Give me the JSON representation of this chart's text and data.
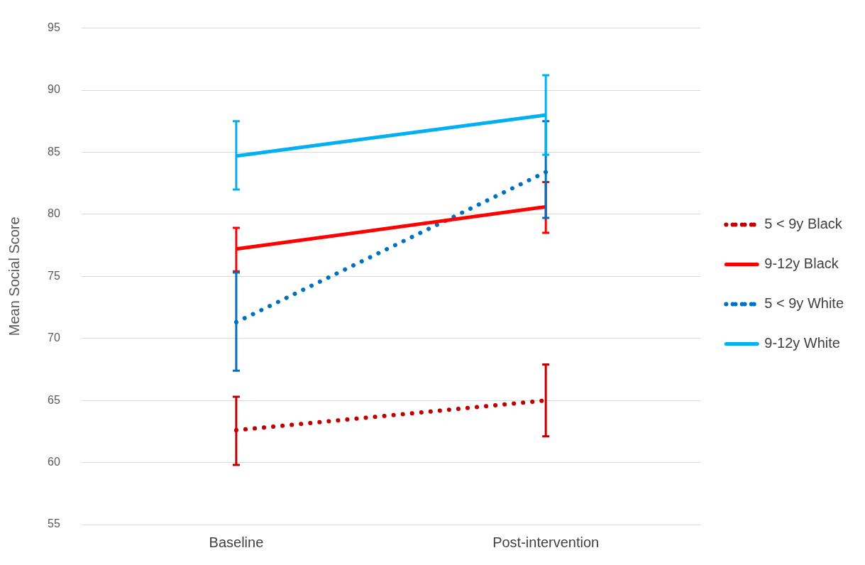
{
  "chart_data": {
    "type": "line",
    "ylabel": "Mean Social Score",
    "categories": [
      "Baseline",
      "Post-intervention"
    ],
    "ylim": [
      55,
      95
    ],
    "yticks": [
      55,
      60,
      65,
      70,
      75,
      80,
      85,
      90,
      95
    ],
    "grid": "y",
    "legend": "right",
    "marker": "none",
    "series": [
      {
        "name": "5 < 9y Black",
        "color": "#c00000",
        "line_style": "dotted",
        "values": [
          62.6,
          65.0
        ],
        "errors": [
          [
            59.8,
            65.3
          ],
          [
            62.1,
            67.9
          ]
        ]
      },
      {
        "name": "9-12y Black",
        "color": "#ff0000",
        "line_style": "solid",
        "values": [
          77.2,
          80.6
        ],
        "errors": [
          [
            75.4,
            78.9
          ],
          [
            78.5,
            82.6
          ]
        ]
      },
      {
        "name": "5 < 9y White",
        "color": "#0070c0",
        "line_style": "dotted",
        "values": [
          71.3,
          83.4
        ],
        "errors": [
          [
            67.4,
            75.3
          ],
          [
            79.7,
            87.5
          ]
        ]
      },
      {
        "name": "9-12y White",
        "color": "#00b0f0",
        "line_style": "solid",
        "values": [
          84.7,
          88.0
        ],
        "errors": [
          [
            82.0,
            87.5
          ],
          [
            84.8,
            91.2
          ]
        ]
      }
    ]
  }
}
